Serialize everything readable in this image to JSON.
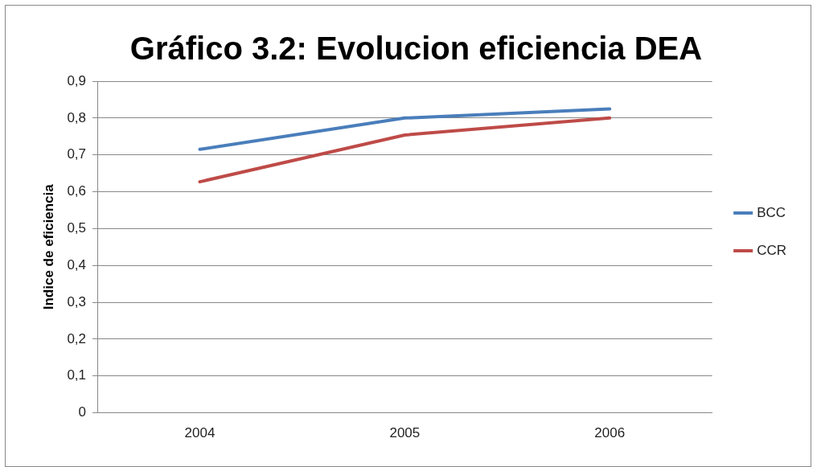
{
  "chart_data": {
    "type": "line",
    "title": "Gráfico 3.2: Evolucion eficiencia DEA",
    "ylabel": "Indice de eficiencia",
    "categories": [
      "2004",
      "2005",
      "2006"
    ],
    "series": [
      {
        "name": "BCC",
        "color": "#4a7ebb",
        "values": [
          0.715,
          0.8,
          0.825
        ]
      },
      {
        "name": "CCR",
        "color": "#be4b48",
        "values": [
          0.627,
          0.754,
          0.8
        ]
      }
    ],
    "ylim": [
      0,
      0.9
    ],
    "yticks": [
      {
        "value": 0,
        "label": "0"
      },
      {
        "value": 0.1,
        "label": "0,1"
      },
      {
        "value": 0.2,
        "label": "0,2"
      },
      {
        "value": 0.3,
        "label": "0,3"
      },
      {
        "value": 0.4,
        "label": "0,4"
      },
      {
        "value": 0.5,
        "label": "0,5"
      },
      {
        "value": 0.6,
        "label": "0,6"
      },
      {
        "value": 0.7,
        "label": "0,7"
      },
      {
        "value": 0.8,
        "label": "0,8"
      },
      {
        "value": 0.9,
        "label": "0,9"
      }
    ],
    "grid": "y",
    "legend": "right",
    "marker": "none",
    "line_style": "solid"
  }
}
